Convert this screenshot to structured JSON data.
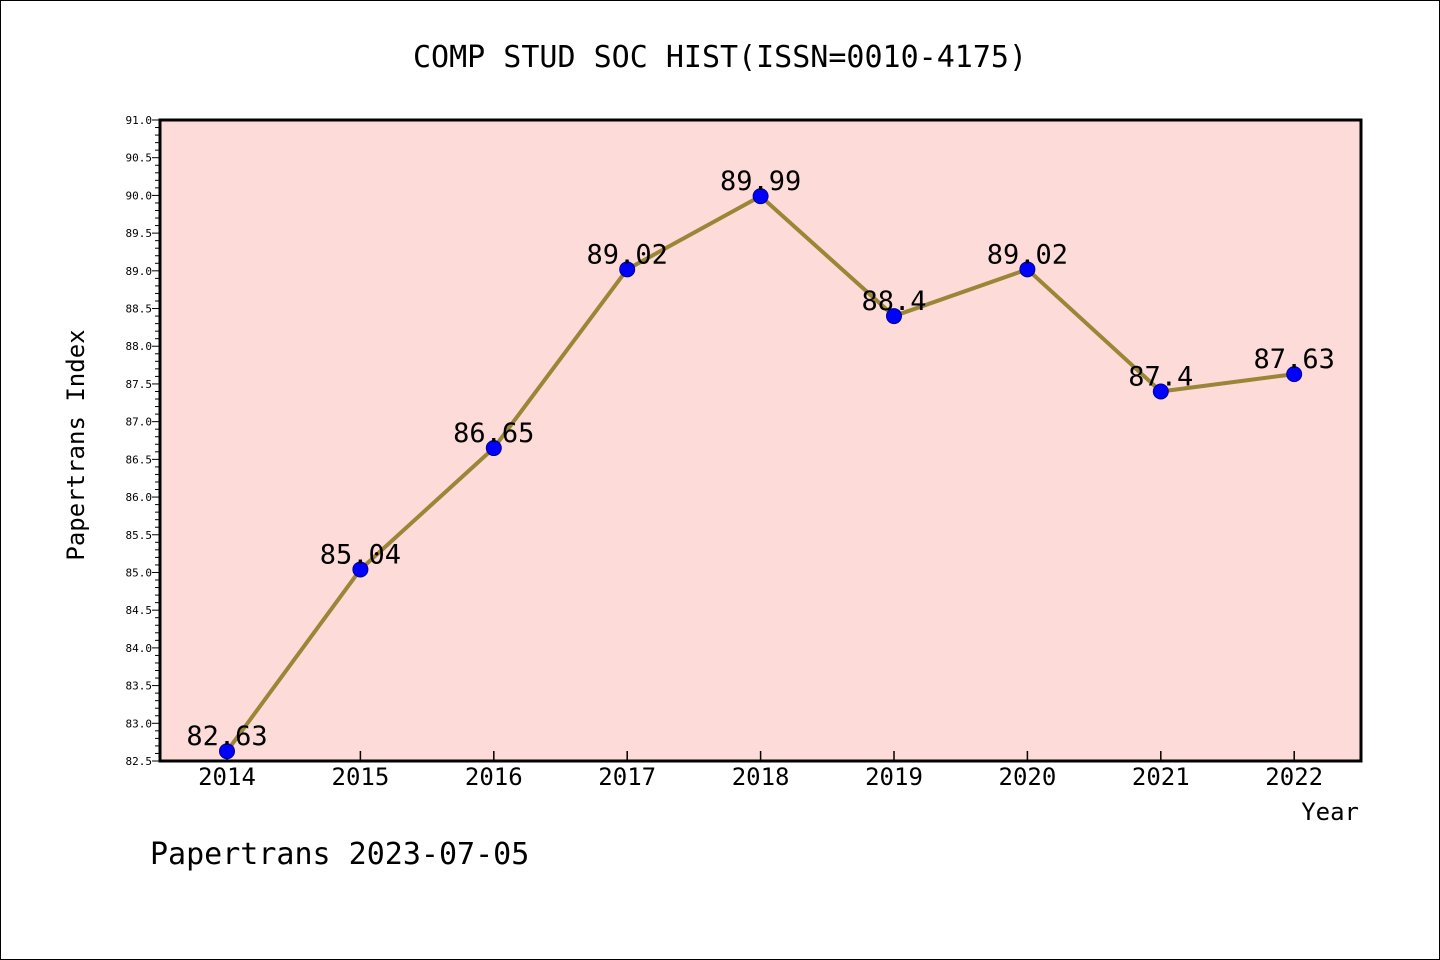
{
  "chart_data": {
    "type": "line",
    "title": "COMP STUD SOC HIST(ISSN=0010-4175)",
    "xlabel": "Year",
    "ylabel": "Papertrans Index",
    "categories": [
      "2014",
      "2015",
      "2016",
      "2017",
      "2018",
      "2019",
      "2020",
      "2021",
      "2022"
    ],
    "values": [
      82.63,
      85.04,
      86.65,
      89.02,
      89.99,
      88.4,
      89.02,
      87.4,
      87.63
    ],
    "data_labels": [
      "82.63",
      "85.04",
      "86.65",
      "89.02",
      "89.99",
      "88.4",
      "89.02",
      "87.4",
      "87.63"
    ],
    "ylim": [
      82.5,
      91.0
    ],
    "yticks": [
      "82.5",
      "83.0",
      "83.5",
      "84.0",
      "84.5",
      "85.0",
      "85.5",
      "86.0",
      "86.5",
      "87.0",
      "87.5",
      "88.0",
      "88.5",
      "89.0",
      "89.5",
      "90.0",
      "90.5",
      "91.0"
    ],
    "grid": false,
    "colors": {
      "plot_background": "#fddbd8",
      "line": "#9b8537",
      "marker": "#0000ff"
    }
  },
  "footer": "Papertrans 2023-07-05"
}
